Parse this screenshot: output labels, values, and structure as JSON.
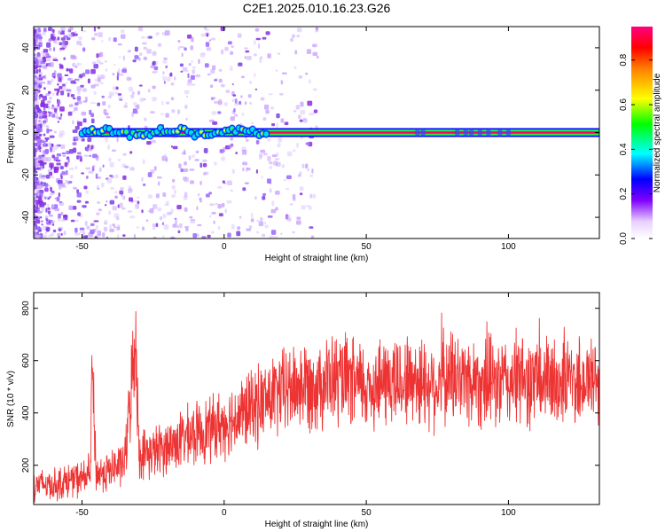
{
  "title": "C2E1.2025.010.16.23.G26",
  "chart_data": [
    {
      "type": "heatmap",
      "xlabel": "Height of straight line (km)",
      "ylabel": "Frequency (Hz)",
      "xlim": [
        -67,
        132
      ],
      "ylim": [
        -50,
        50
      ],
      "xticks": [
        -50,
        0,
        50,
        100
      ],
      "yticks": [
        -40,
        -20,
        0,
        20,
        40
      ],
      "colorbar": {
        "label": "Normalized spectral amplitude",
        "range": [
          0,
          0.95
        ],
        "ticks": [
          0.0,
          0.2,
          0.4,
          0.6,
          0.8
        ]
      },
      "carrier_frequency_hz": 0,
      "grid": false
    },
    {
      "type": "line",
      "xlabel": "Height of straight line (km)",
      "ylabel": "SNR (10 * v/v)",
      "xlim": [
        -67,
        132
      ],
      "ylim": [
        50,
        860
      ],
      "xticks": [
        -50,
        0,
        50,
        100
      ],
      "yticks": [
        200,
        400,
        600,
        800
      ],
      "series": [
        {
          "color": "#ee3333",
          "x": [
            -67,
            -60,
            -55,
            -50,
            -47,
            -46.5,
            -45,
            -40,
            -35,
            -31,
            -30,
            -25,
            -20,
            -15,
            -10,
            -5,
            0,
            5,
            10,
            15,
            20,
            25,
            30,
            35,
            40,
            45,
            50,
            55,
            60,
            65,
            70,
            75,
            80,
            85,
            90,
            95,
            100,
            105,
            110,
            115,
            120,
            125,
            132
          ],
          "values": [
            130,
            125,
            140,
            150,
            170,
            580,
            165,
            180,
            210,
            700,
            240,
            250,
            270,
            300,
            320,
            340,
            360,
            390,
            420,
            450,
            480,
            500,
            510,
            520,
            525,
            510,
            500,
            515,
            520,
            530,
            520,
            510,
            540,
            530,
            520,
            510,
            520,
            525,
            520,
            515,
            525,
            520,
            530
          ]
        }
      ],
      "grid": false
    }
  ]
}
